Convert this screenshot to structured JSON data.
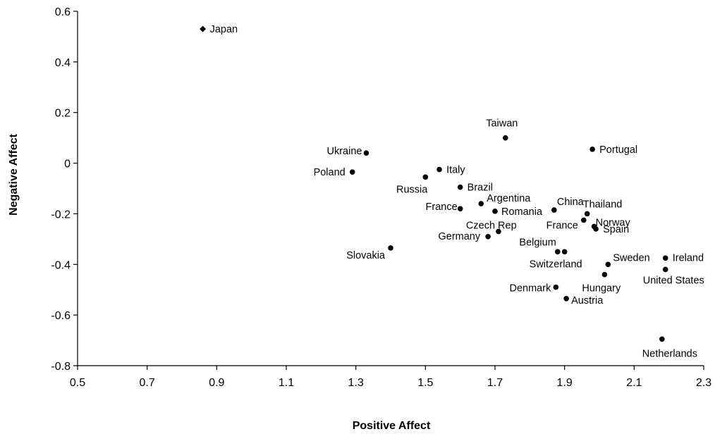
{
  "chart_data": {
    "type": "scatter",
    "title": "",
    "xlabel": "Positive Affect",
    "ylabel": "Negative Affect",
    "xlim": [
      0.5,
      2.3
    ],
    "ylim": [
      -0.8,
      0.6
    ],
    "x_ticks": [
      "0.5",
      "0.7",
      "0.9",
      "1.1",
      "1.3",
      "1.5",
      "1.7",
      "1.9",
      "2.1",
      "2.3"
    ],
    "y_ticks": [
      "0.6",
      "0.4",
      "0.2",
      "0",
      "-0.2",
      "-0.4",
      "-0.6",
      "-0.8"
    ],
    "grid": false,
    "marker_color": "#000000",
    "points": [
      {
        "label": "Japan",
        "x": 0.86,
        "y": 0.53,
        "marker": "diamond"
      },
      {
        "label": "Taiwan",
        "x": 1.73,
        "y": 0.1
      },
      {
        "label": "Portugal",
        "x": 1.98,
        "y": 0.055
      },
      {
        "label": "Ukraine",
        "x": 1.33,
        "y": 0.04
      },
      {
        "label": "Poland",
        "x": 1.29,
        "y": -0.035
      },
      {
        "label": "Italy",
        "x": 1.54,
        "y": -0.025
      },
      {
        "label": "Russia",
        "x": 1.5,
        "y": -0.055
      },
      {
        "label": "Brazil",
        "x": 1.6,
        "y": -0.095
      },
      {
        "label": "Argentina",
        "x": 1.66,
        "y": -0.16
      },
      {
        "label": "France",
        "x": 1.6,
        "y": -0.18
      },
      {
        "label": "Romania",
        "x": 1.7,
        "y": -0.19
      },
      {
        "label": "China",
        "x": 1.87,
        "y": -0.185
      },
      {
        "label": "Thailand",
        "x": 1.965,
        "y": -0.2
      },
      {
        "label": "France",
        "x": 1.955,
        "y": -0.225
      },
      {
        "label": "Norway",
        "x": 1.985,
        "y": -0.25
      },
      {
        "label": "Spain",
        "x": 1.99,
        "y": -0.26
      },
      {
        "label": "Czech Rep",
        "x": 1.71,
        "y": -0.27
      },
      {
        "label": "Germany",
        "x": 1.68,
        "y": -0.29
      },
      {
        "label": "Slovakia",
        "x": 1.4,
        "y": -0.335
      },
      {
        "label": "Belgium",
        "x": 1.88,
        "y": -0.35
      },
      {
        "label": "Switzerland",
        "x": 1.9,
        "y": -0.35
      },
      {
        "label": "Sweden",
        "x": 2.025,
        "y": -0.4
      },
      {
        "label": "Ireland",
        "x": 2.19,
        "y": -0.375
      },
      {
        "label": "United States",
        "x": 2.19,
        "y": -0.42
      },
      {
        "label": "Hungary",
        "x": 2.015,
        "y": -0.44
      },
      {
        "label": "Denmark",
        "x": 1.875,
        "y": -0.49
      },
      {
        "label": "Austria",
        "x": 1.905,
        "y": -0.535
      },
      {
        "label": "Netherlands",
        "x": 2.18,
        "y": -0.695
      }
    ]
  }
}
